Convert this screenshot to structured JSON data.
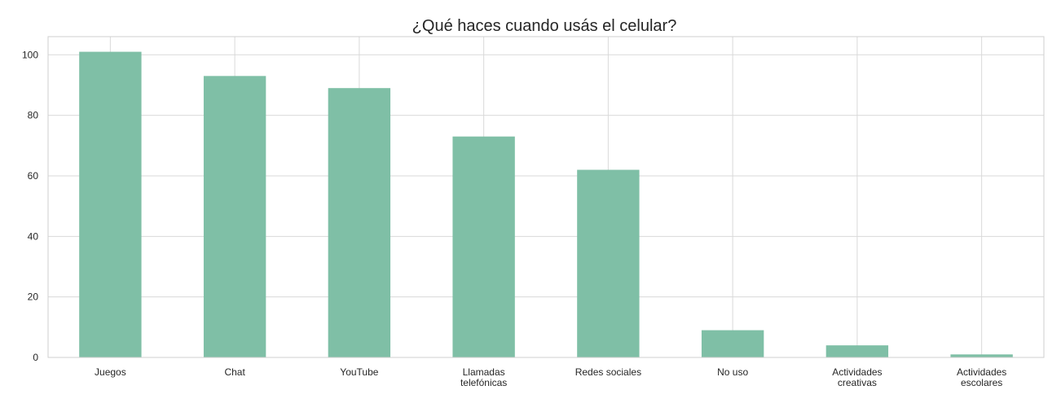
{
  "chart_data": {
    "type": "bar",
    "title": "¿Qué haces cuando usás el celular?",
    "xlabel": "",
    "ylabel": "",
    "categories": [
      [
        "Juegos"
      ],
      [
        "Chat"
      ],
      [
        "YouTube"
      ],
      [
        "Llamadas",
        "telefónicas"
      ],
      [
        "Redes sociales"
      ],
      [
        "No uso"
      ],
      [
        "Actividades",
        "creativas"
      ],
      [
        "Actividades",
        "escolares"
      ]
    ],
    "values": [
      101,
      93,
      89,
      73,
      62,
      9,
      4,
      1
    ],
    "ylim": [
      0,
      106
    ],
    "yticks": [
      0,
      20,
      40,
      60,
      80,
      100
    ],
    "grid": true,
    "bar_color": "#7fbfa6",
    "legend": null
  }
}
